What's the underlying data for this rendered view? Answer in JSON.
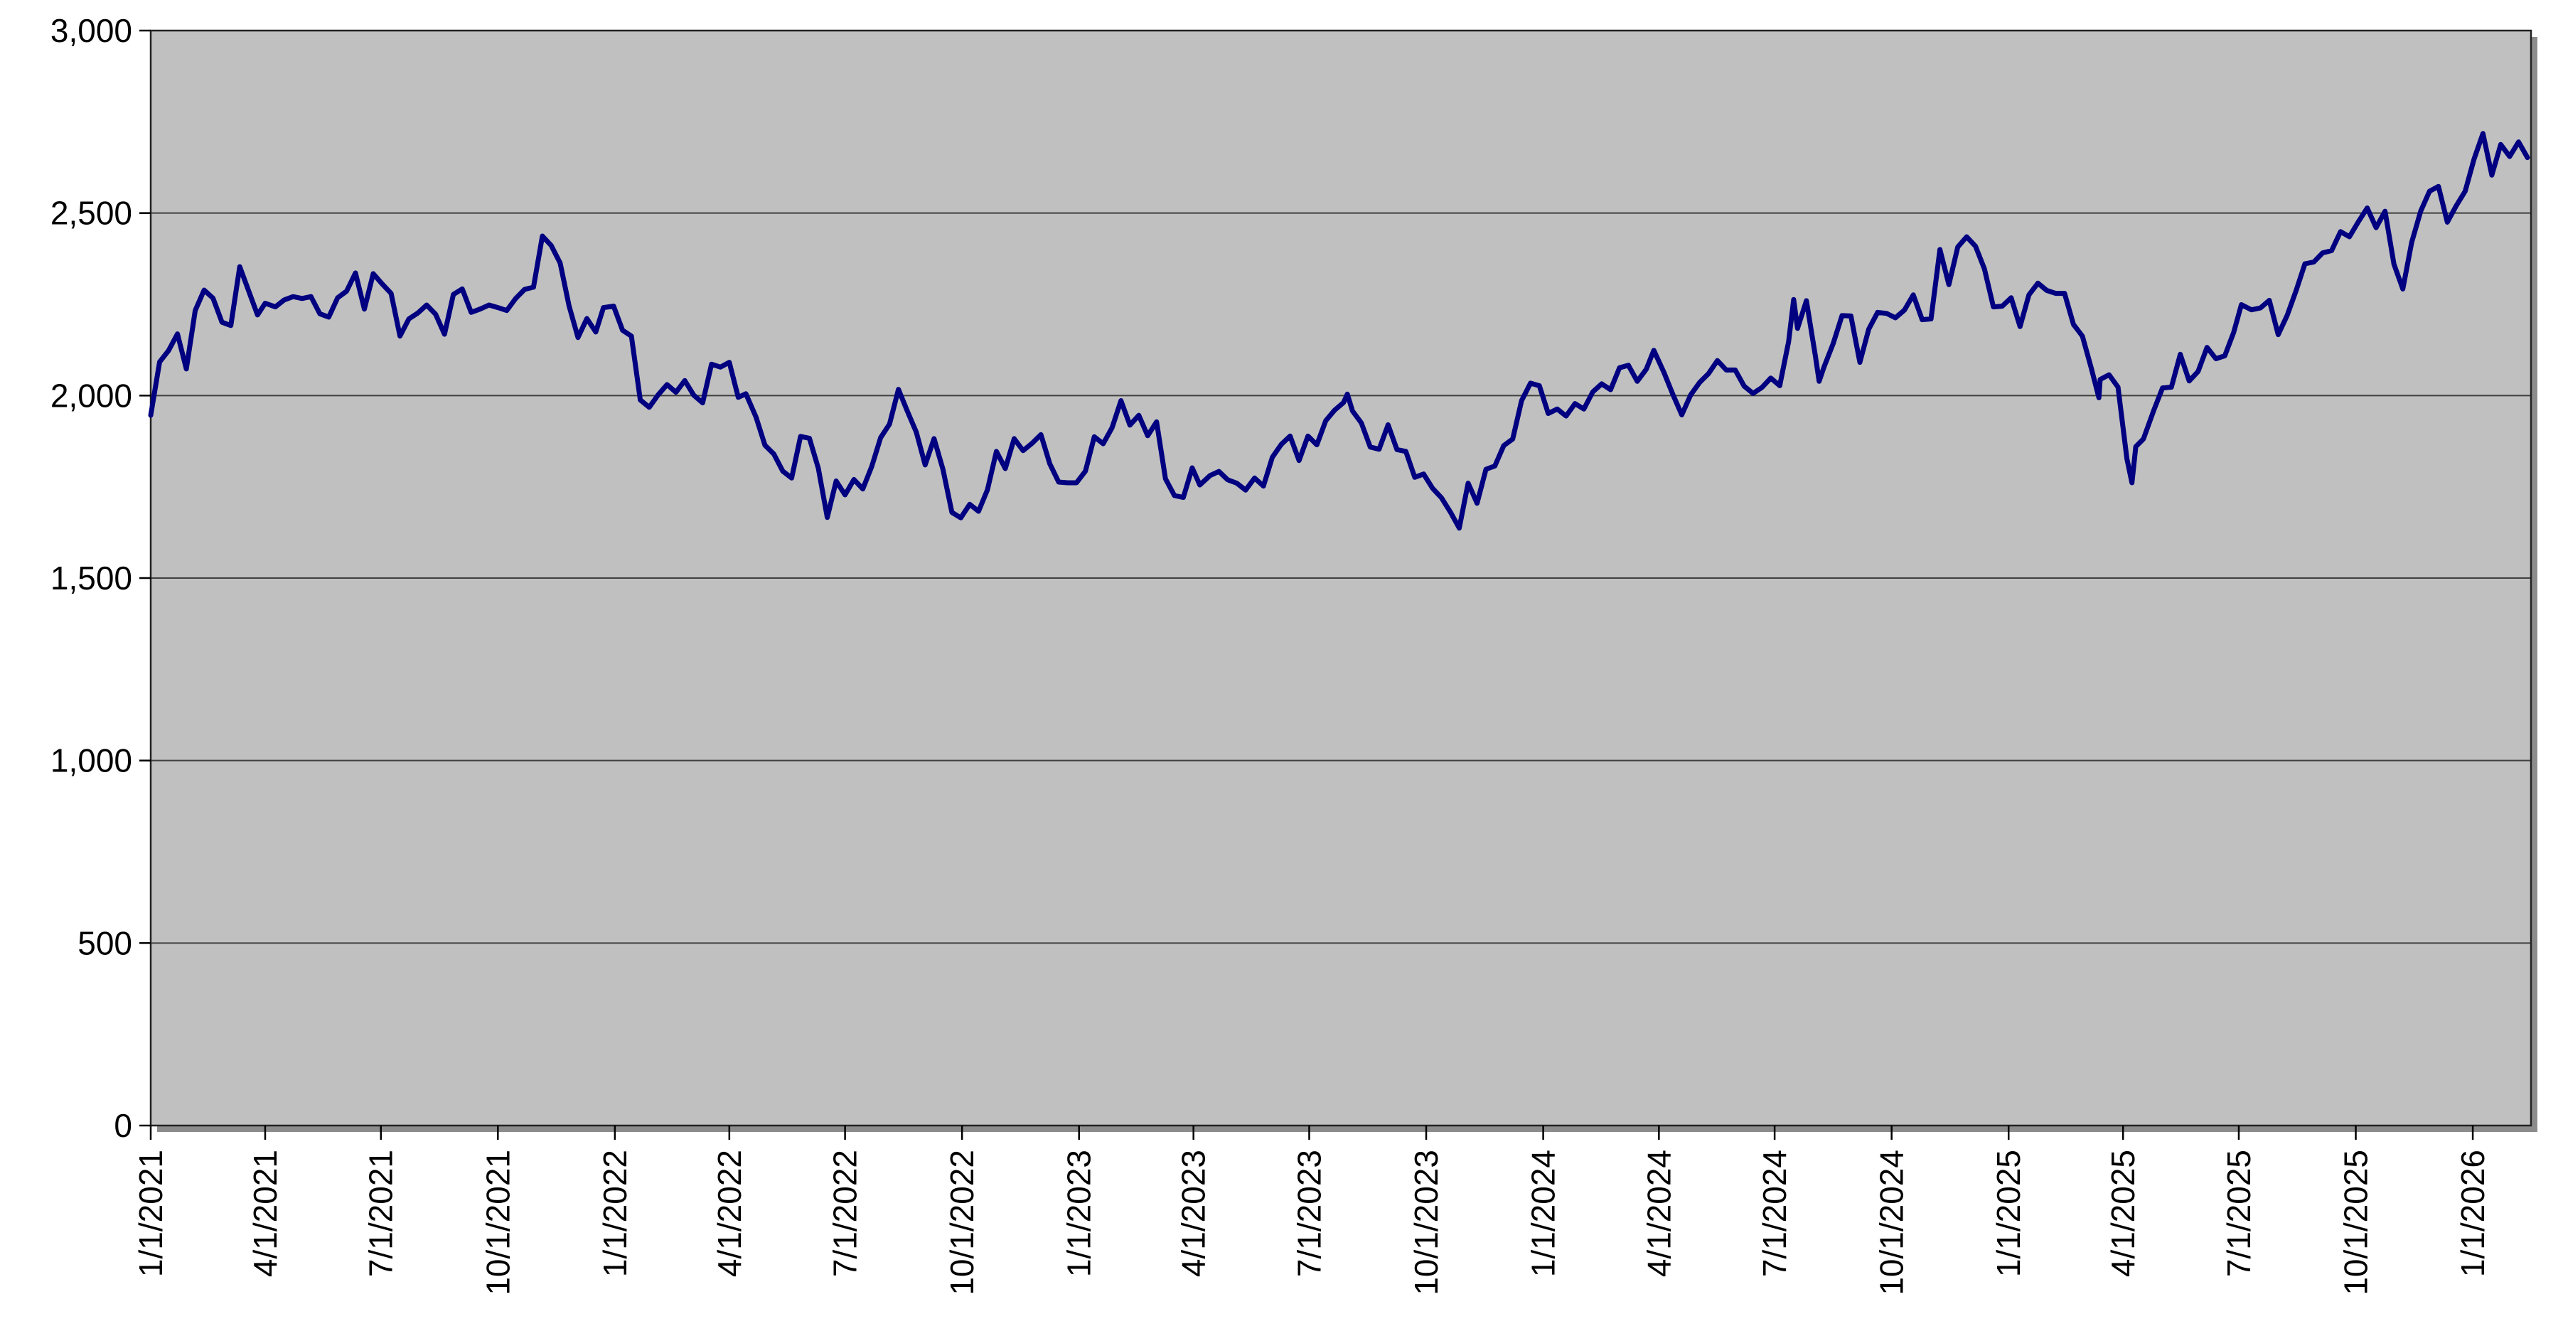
{
  "chart_data": {
    "type": "line",
    "xlabel": "",
    "ylabel": "",
    "ylim": [
      0,
      3000
    ],
    "grid": "horizontal",
    "legend": "none",
    "style": {
      "page_background": "#FFFFFF",
      "plot_background": "#C0C0C0",
      "line_color": "#000080",
      "gridline_color": "#3F3F3F",
      "border_color": "#222222",
      "shadow_color": "#8C8C8C",
      "tick_color": "#000000",
      "axis_text_color": "#000000"
    },
    "y_ticks": {
      "values": [
        0,
        500,
        1000,
        1500,
        2000,
        2500,
        3000
      ],
      "labels": [
        "0",
        "500",
        "1,000",
        "1,500",
        "2,000",
        "2,500",
        "3,000"
      ]
    },
    "x_ticks": [
      "1/1/2021",
      "4/1/2021",
      "7/1/2021",
      "10/1/2021",
      "1/1/2022",
      "4/1/2022",
      "7/1/2022",
      "10/1/2022",
      "1/1/2023",
      "4/1/2023",
      "7/1/2023",
      "10/1/2023",
      "1/1/2024",
      "4/1/2024",
      "7/1/2024",
      "10/1/2024",
      "1/1/2025",
      "4/1/2025",
      "7/1/2025",
      "10/1/2025",
      "1/1/2026"
    ],
    "series": [
      {
        "color": "#000080",
        "points": [
          [
            "1/1/2021",
            1946
          ],
          [
            "1/8/2021",
            2092
          ],
          [
            "1/15/2021",
            2123
          ],
          [
            "1/22/2021",
            2169
          ],
          [
            "1/29/2021",
            2073
          ],
          [
            "2/5/2021",
            2233
          ],
          [
            "2/12/2021",
            2289
          ],
          [
            "2/19/2021",
            2267
          ],
          [
            "2/26/2021",
            2201
          ],
          [
            "3/5/2021",
            2192
          ],
          [
            "3/12/2021",
            2353
          ],
          [
            "3/19/2021",
            2287
          ],
          [
            "3/26/2021",
            2221
          ],
          [
            "4/1/2021",
            2253
          ],
          [
            "4/9/2021",
            2243
          ],
          [
            "4/16/2021",
            2262
          ],
          [
            "4/23/2021",
            2271
          ],
          [
            "4/30/2021",
            2266
          ],
          [
            "5/7/2021",
            2271
          ],
          [
            "5/14/2021",
            2224
          ],
          [
            "5/21/2021",
            2215
          ],
          [
            "5/28/2021",
            2268
          ],
          [
            "6/4/2021",
            2286
          ],
          [
            "6/11/2021",
            2336
          ],
          [
            "6/18/2021",
            2237
          ],
          [
            "6/25/2021",
            2334
          ],
          [
            "7/2/2021",
            2306
          ],
          [
            "7/9/2021",
            2280
          ],
          [
            "7/16/2021",
            2163
          ],
          [
            "7/23/2021",
            2210
          ],
          [
            "7/30/2021",
            2226
          ],
          [
            "8/6/2021",
            2248
          ],
          [
            "8/13/2021",
            2223
          ],
          [
            "8/20/2021",
            2168
          ],
          [
            "8/27/2021",
            2277
          ],
          [
            "9/3/2021",
            2292
          ],
          [
            "9/10/2021",
            2228
          ],
          [
            "9/17/2021",
            2237
          ],
          [
            "9/24/2021",
            2248
          ],
          [
            "10/1/2021",
            2241
          ],
          [
            "10/8/2021",
            2233
          ],
          [
            "10/15/2021",
            2266
          ],
          [
            "10/22/2021",
            2291
          ],
          [
            "10/29/2021",
            2297
          ],
          [
            "11/5/2021",
            2437
          ],
          [
            "11/12/2021",
            2411
          ],
          [
            "11/19/2021",
            2363
          ],
          [
            "11/26/2021",
            2245
          ],
          [
            "12/3/2021",
            2159
          ],
          [
            "12/10/2021",
            2211
          ],
          [
            "12/17/2021",
            2174
          ],
          [
            "12/23/2021",
            2241
          ],
          [
            "12/31/2021",
            2245
          ],
          [
            "1/7/2022",
            2179
          ],
          [
            "1/14/2022",
            2163
          ],
          [
            "1/21/2022",
            1988
          ],
          [
            "1/28/2022",
            1968
          ],
          [
            "2/4/2022",
            2002
          ],
          [
            "2/11/2022",
            2030
          ],
          [
            "2/18/2022",
            2009
          ],
          [
            "2/25/2022",
            2041
          ],
          [
            "3/4/2022",
            2001
          ],
          [
            "3/11/2022",
            1980
          ],
          [
            "3/18/2022",
            2086
          ],
          [
            "3/25/2022",
            2078
          ],
          [
            "4/1/2022",
            2091
          ],
          [
            "4/8/2022",
            1995
          ],
          [
            "4/14/2022",
            2005
          ],
          [
            "4/22/2022",
            1941
          ],
          [
            "4/29/2022",
            1864
          ],
          [
            "5/6/2022",
            1840
          ],
          [
            "5/13/2022",
            1793
          ],
          [
            "5/20/2022",
            1774
          ],
          [
            "5/27/2022",
            1888
          ],
          [
            "6/3/2022",
            1883
          ],
          [
            "6/10/2022",
            1801
          ],
          [
            "6/17/2022",
            1666
          ],
          [
            "6/24/2022",
            1766
          ],
          [
            "7/1/2022",
            1728
          ],
          [
            "7/8/2022",
            1770
          ],
          [
            "7/15/2022",
            1744
          ],
          [
            "7/22/2022",
            1806
          ],
          [
            "7/29/2022",
            1885
          ],
          [
            "8/5/2022",
            1922
          ],
          [
            "8/12/2022",
            2017
          ],
          [
            "8/19/2022",
            1957
          ],
          [
            "8/26/2022",
            1900
          ],
          [
            "9/2/2022",
            1810
          ],
          [
            "9/9/2022",
            1882
          ],
          [
            "9/16/2022",
            1798
          ],
          [
            "9/23/2022",
            1680
          ],
          [
            "9/30/2022",
            1665
          ],
          [
            "10/7/2022",
            1702
          ],
          [
            "10/14/2022",
            1683
          ],
          [
            "10/21/2022",
            1742
          ],
          [
            "10/28/2022",
            1847
          ],
          [
            "11/4/2022",
            1800
          ],
          [
            "11/11/2022",
            1882
          ],
          [
            "11/18/2022",
            1849
          ],
          [
            "11/25/2022",
            1869
          ],
          [
            "12/2/2022",
            1893
          ],
          [
            "12/9/2022",
            1813
          ],
          [
            "12/16/2022",
            1763
          ],
          [
            "12/23/2022",
            1761
          ],
          [
            "12/30/2022",
            1761
          ],
          [
            "1/6/2023",
            1793
          ],
          [
            "1/13/2023",
            1887
          ],
          [
            "1/20/2023",
            1868
          ],
          [
            "1/27/2023",
            1912
          ],
          [
            "2/3/2023",
            1986
          ],
          [
            "2/10/2023",
            1919
          ],
          [
            "2/17/2023",
            1946
          ],
          [
            "2/24/2023",
            1890
          ],
          [
            "3/3/2023",
            1928
          ],
          [
            "3/10/2023",
            1772
          ],
          [
            "3/17/2023",
            1726
          ],
          [
            "3/24/2023",
            1721
          ],
          [
            "3/31/2023",
            1802
          ],
          [
            "4/6/2023",
            1755
          ],
          [
            "4/14/2023",
            1781
          ],
          [
            "4/21/2023",
            1792
          ],
          [
            "4/28/2023",
            1769
          ],
          [
            "5/5/2023",
            1760
          ],
          [
            "5/12/2023",
            1741
          ],
          [
            "5/19/2023",
            1774
          ],
          [
            "5/26/2023",
            1752
          ],
          [
            "6/2/2023",
            1831
          ],
          [
            "6/9/2023",
            1866
          ],
          [
            "6/16/2023",
            1889
          ],
          [
            "6/23/2023",
            1822
          ],
          [
            "6/30/2023",
            1889
          ],
          [
            "7/7/2023",
            1865
          ],
          [
            "7/14/2023",
            1931
          ],
          [
            "7/21/2023",
            1960
          ],
          [
            "7/28/2023",
            1981
          ],
          [
            "7/31/2023",
            2004
          ],
          [
            "8/4/2023",
            1958
          ],
          [
            "8/11/2023",
            1925
          ],
          [
            "8/18/2023",
            1859
          ],
          [
            "8/25/2023",
            1853
          ],
          [
            "9/1/2023",
            1920
          ],
          [
            "9/8/2023",
            1852
          ],
          [
            "9/15/2023",
            1847
          ],
          [
            "9/22/2023",
            1776
          ],
          [
            "9/29/2023",
            1785
          ],
          [
            "10/6/2023",
            1746
          ],
          [
            "10/13/2023",
            1720
          ],
          [
            "10/20/2023",
            1681
          ],
          [
            "10/27/2023",
            1637
          ],
          [
            "11/3/2023",
            1760
          ],
          [
            "11/10/2023",
            1705
          ],
          [
            "11/17/2023",
            1798
          ],
          [
            "11/24/2023",
            1807
          ],
          [
            "12/1/2023",
            1863
          ],
          [
            "12/8/2023",
            1881
          ],
          [
            "12/15/2023",
            1986
          ],
          [
            "12/22/2023",
            2034
          ],
          [
            "12/29/2023",
            2027
          ],
          [
            "1/5/2024",
            1951
          ],
          [
            "1/12/2024",
            1963
          ],
          [
            "1/19/2024",
            1944
          ],
          [
            "1/26/2024",
            1978
          ],
          [
            "2/2/2024",
            1963
          ],
          [
            "2/9/2024",
            2010
          ],
          [
            "2/16/2024",
            2032
          ],
          [
            "2/23/2024",
            2016
          ],
          [
            "3/1/2024",
            2076
          ],
          [
            "3/8/2024",
            2083
          ],
          [
            "3/15/2024",
            2039
          ],
          [
            "3/22/2024",
            2072
          ],
          [
            "3/28/2024",
            2124
          ],
          [
            "4/5/2024",
            2063
          ],
          [
            "4/12/2024",
            2003
          ],
          [
            "4/19/2024",
            1947
          ],
          [
            "4/26/2024",
            2002
          ],
          [
            "5/3/2024",
            2036
          ],
          [
            "5/10/2024",
            2060
          ],
          [
            "5/17/2024",
            2096
          ],
          [
            "5/24/2024",
            2070
          ],
          [
            "5/31/2024",
            2070
          ],
          [
            "6/7/2024",
            2026
          ],
          [
            "6/14/2024",
            2006
          ],
          [
            "6/21/2024",
            2022
          ],
          [
            "6/28/2024",
            2048
          ],
          [
            "7/5/2024",
            2027
          ],
          [
            "7/12/2024",
            2148
          ],
          [
            "7/16/2024",
            2263
          ],
          [
            "7/19/2024",
            2184
          ],
          [
            "7/26/2024",
            2260
          ],
          [
            "8/2/2024",
            2109
          ],
          [
            "8/5/2024",
            2039
          ],
          [
            "8/9/2024",
            2080
          ],
          [
            "8/16/2024",
            2142
          ],
          [
            "8/23/2024",
            2219
          ],
          [
            "8/30/2024",
            2218
          ],
          [
            "9/6/2024",
            2091
          ],
          [
            "9/13/2024",
            2182
          ],
          [
            "9/20/2024",
            2228
          ],
          [
            "9/27/2024",
            2225
          ],
          [
            "10/4/2024",
            2213
          ],
          [
            "10/11/2024",
            2234
          ],
          [
            "10/18/2024",
            2276
          ],
          [
            "10/25/2024",
            2208
          ],
          [
            "11/1/2024",
            2210
          ],
          [
            "11/8/2024",
            2400
          ],
          [
            "11/15/2024",
            2304
          ],
          [
            "11/22/2024",
            2407
          ],
          [
            "11/29/2024",
            2435
          ],
          [
            "12/6/2024",
            2409
          ],
          [
            "12/13/2024",
            2347
          ],
          [
            "12/20/2024",
            2243
          ],
          [
            "12/27/2024",
            2245
          ],
          [
            "1/3/2025",
            2268
          ],
          [
            "1/10/2025",
            2189
          ],
          [
            "1/17/2025",
            2276
          ],
          [
            "1/24/2025",
            2308
          ],
          [
            "1/31/2025",
            2288
          ],
          [
            "2/7/2025",
            2280
          ],
          [
            "2/14/2025",
            2280
          ],
          [
            "2/21/2025",
            2195
          ],
          [
            "2/28/2025",
            2163
          ],
          [
            "3/7/2025",
            2075
          ],
          [
            "3/13/2025",
            1994
          ],
          [
            "3/14/2025",
            2044
          ],
          [
            "3/21/2025",
            2057
          ],
          [
            "3/28/2025",
            2023
          ],
          [
            "4/4/2025",
            1827
          ],
          [
            "4/8/2025",
            1761
          ],
          [
            "4/11/2025",
            1860
          ],
          [
            "4/17/2025",
            1881
          ],
          [
            "4/25/2025",
            1958
          ],
          [
            "5/2/2025",
            2021
          ],
          [
            "5/9/2025",
            2023
          ],
          [
            "5/16/2025",
            2113
          ],
          [
            "5/23/2025",
            2040
          ],
          [
            "5/30/2025",
            2066
          ],
          [
            "6/6/2025",
            2132
          ],
          [
            "6/13/2025",
            2101
          ],
          [
            "6/20/2025",
            2109
          ],
          [
            "6/27/2025",
            2173
          ],
          [
            "7/3/2025",
            2249
          ],
          [
            "7/11/2025",
            2235
          ],
          [
            "7/18/2025",
            2240
          ],
          [
            "7/25/2025",
            2261
          ],
          [
            "8/1/2025",
            2167
          ],
          [
            "8/8/2025",
            2219
          ],
          [
            "8/15/2025",
            2287
          ],
          [
            "8/22/2025",
            2361
          ],
          [
            "8/29/2025",
            2366
          ],
          [
            "9/5/2025",
            2391
          ],
          [
            "9/12/2025",
            2397
          ],
          [
            "9/19/2025",
            2449
          ],
          [
            "9/26/2025",
            2435
          ],
          [
            "10/3/2025",
            2476
          ],
          [
            "10/10/2025",
            2514
          ],
          [
            "10/17/2025",
            2460
          ],
          [
            "10/24/2025",
            2505
          ],
          [
            "10/31/2025",
            2360
          ],
          [
            "11/7/2025",
            2292
          ],
          [
            "11/14/2025",
            2420
          ],
          [
            "11/21/2025",
            2505
          ],
          [
            "11/28/2025",
            2560
          ],
          [
            "12/5/2025",
            2573
          ],
          [
            "12/12/2025",
            2475
          ],
          [
            "12/19/2025",
            2520
          ],
          [
            "12/26/2025",
            2560
          ],
          [
            "1/2/2026",
            2648
          ],
          [
            "1/9/2026",
            2718
          ],
          [
            "1/16/2026",
            2604
          ],
          [
            "1/23/2026",
            2688
          ],
          [
            "1/30/2026",
            2655
          ],
          [
            "2/6/2026",
            2695
          ],
          [
            "2/13/2026",
            2652
          ]
        ]
      }
    ]
  }
}
